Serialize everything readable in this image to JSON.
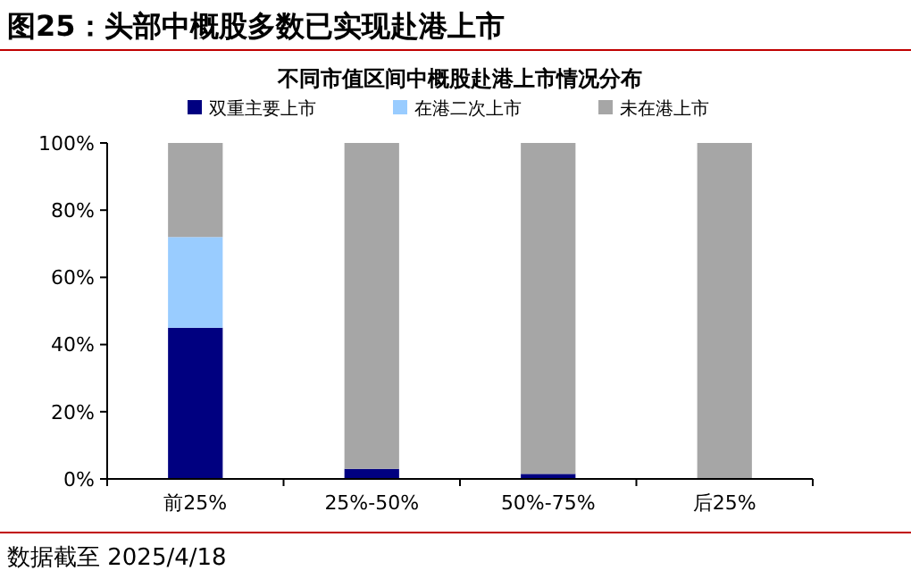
{
  "chart_data": {
    "type": "bar",
    "title": "图25：头部中概股多数已实现赴港上市",
    "subtitle": "不同市值区间中概股赴港上市情况分布",
    "categories": [
      "前25%",
      "25%-50%",
      "50%-75%",
      "后25%"
    ],
    "stacked": true,
    "ylim": [
      0,
      100
    ],
    "yticks": [
      {
        "value": 0,
        "label": "0%"
      },
      {
        "value": 20,
        "label": "20%"
      },
      {
        "value": 40,
        "label": "40%"
      },
      {
        "value": 60,
        "label": "60%"
      },
      {
        "value": 80,
        "label": "80%"
      },
      {
        "value": 100,
        "label": "100%"
      }
    ],
    "grid": false,
    "legend": "top",
    "series": [
      {
        "name": "双重主要上市",
        "color": "#000080",
        "values": [
          45,
          3,
          1.5,
          0
        ]
      },
      {
        "name": "在港二次上市",
        "color": "#99ccff",
        "values": [
          27,
          0,
          0,
          0
        ]
      },
      {
        "name": "未在港上市",
        "color": "#a6a6a6",
        "values": [
          28,
          97,
          98.5,
          100
        ]
      }
    ],
    "annotations": [
      "数据截至 2025/4/18"
    ]
  }
}
